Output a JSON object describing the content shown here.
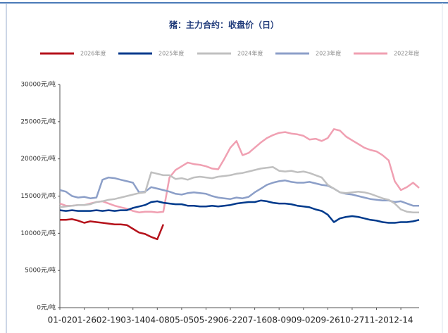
{
  "chart_data": {
    "type": "line",
    "title": "猪：主力合约：收盘价（日）",
    "categories": [
      "01-02",
      null,
      null,
      null,
      "01-26",
      null,
      null,
      null,
      "02-19",
      null,
      null,
      null,
      "03-14",
      null,
      null,
      null,
      "04-08",
      null,
      null,
      null,
      "05-05",
      null,
      null,
      null,
      "05-29",
      null,
      null,
      null,
      "06-22",
      null,
      null,
      null,
      "07-16",
      null,
      null,
      null,
      "08-09",
      null,
      null,
      null,
      "09-02",
      null,
      null,
      null,
      "09-26",
      null,
      null,
      null,
      "10-27",
      null,
      null,
      null,
      "11-20",
      null,
      null,
      null,
      "12-14",
      null,
      null,
      null
    ],
    "series": [
      {
        "name": "2026年度",
        "color": "#b5121b",
        "values": [
          11800,
          11800,
          11900,
          11700,
          11400,
          11600,
          11500,
          11400,
          11300,
          11200,
          11200,
          11100,
          10600,
          10100,
          9900,
          9500,
          9200,
          11200,
          null,
          null,
          null,
          null,
          null,
          null,
          null,
          null,
          null,
          null,
          null,
          null,
          null,
          null,
          null,
          null,
          null,
          null,
          null,
          null,
          null,
          null,
          null,
          null,
          null,
          null,
          null,
          null,
          null,
          null,
          null,
          null,
          null,
          null,
          null,
          null,
          null,
          null,
          null,
          null,
          null,
          null
        ]
      },
      {
        "name": "2025年度",
        "color": "#003a8c",
        "values": [
          13100,
          13000,
          13100,
          13000,
          13000,
          13000,
          13100,
          13000,
          13100,
          13000,
          13100,
          13100,
          13400,
          13600,
          13800,
          14200,
          14300,
          14100,
          14000,
          13900,
          13900,
          13700,
          13700,
          13600,
          13600,
          13700,
          13600,
          13700,
          13800,
          14000,
          14100,
          14200,
          14200,
          14400,
          14300,
          14100,
          14000,
          14000,
          13900,
          13700,
          13600,
          13500,
          13200,
          13000,
          12500,
          11500,
          12000,
          12200,
          12300,
          12200,
          12000,
          11800,
          11700,
          11500,
          11400,
          11400,
          11500,
          11500,
          11600,
          11800
        ]
      },
      {
        "name": "2024年度",
        "color": "#c0c0c0",
        "values": [
          13500,
          13600,
          13700,
          13800,
          13800,
          13900,
          14200,
          14300,
          14500,
          14600,
          14800,
          15000,
          15200,
          15400,
          15500,
          18200,
          18000,
          17800,
          17800,
          17300,
          17400,
          17200,
          17500,
          17600,
          17500,
          17400,
          17600,
          17700,
          17800,
          18000,
          18100,
          18300,
          18500,
          18700,
          18800,
          18900,
          18400,
          18300,
          18400,
          18200,
          18300,
          18100,
          17800,
          17500,
          16500,
          16000,
          15500,
          15400,
          15500,
          15600,
          15500,
          15300,
          15000,
          14700,
          14500,
          14000,
          13200,
          12900,
          12800,
          12800
        ]
      },
      {
        "name": "2023年度",
        "color": "#8c9fc8",
        "values": [
          15800,
          15600,
          15000,
          14800,
          14900,
          14700,
          14800,
          17200,
          17500,
          17400,
          17200,
          17000,
          16800,
          15500,
          15600,
          16200,
          16000,
          15800,
          15600,
          15300,
          15200,
          15400,
          15500,
          15400,
          15300,
          15000,
          14800,
          14700,
          14600,
          14800,
          14700,
          14900,
          15500,
          16000,
          16500,
          16800,
          17000,
          17100,
          16900,
          16800,
          16800,
          16900,
          16700,
          16500,
          16400,
          16000,
          15500,
          15300,
          15200,
          15000,
          14800,
          14600,
          14500,
          14400,
          14400,
          14200,
          14300,
          14000,
          13700,
          13700
        ]
      },
      {
        "name": "2022年度",
        "color": "#f0a0b2",
        "values": [
          14000,
          13700,
          13700,
          13800,
          13800,
          14000,
          14200,
          14300,
          14000,
          13700,
          13500,
          13300,
          13000,
          12800,
          12900,
          12900,
          12800,
          12900,
          17500,
          18500,
          19000,
          19500,
          19300,
          19200,
          19000,
          18700,
          18600,
          20000,
          21500,
          22400,
          20500,
          20800,
          21500,
          22200,
          22800,
          23200,
          23500,
          23600,
          23400,
          23300,
          23100,
          22600,
          22700,
          22400,
          22800,
          24000,
          23800,
          23000,
          22500,
          22000,
          21500,
          21200,
          21000,
          20500,
          19800,
          17000,
          15800,
          16200,
          16800,
          16100
        ]
      }
    ],
    "ylim": [
      0,
      30000
    ],
    "yticks": [
      {
        "value": 0,
        "label": "0元/吨"
      },
      {
        "value": 5000,
        "label": "5000元/吨"
      },
      {
        "value": 10000,
        "label": "10000元/吨"
      },
      {
        "value": 15000,
        "label": "15000元/吨"
      },
      {
        "value": 20000,
        "label": "20000元/吨"
      },
      {
        "value": 25000,
        "label": "25000元/吨"
      },
      {
        "value": 30000,
        "label": "30000元/吨"
      }
    ],
    "legend": "top"
  }
}
